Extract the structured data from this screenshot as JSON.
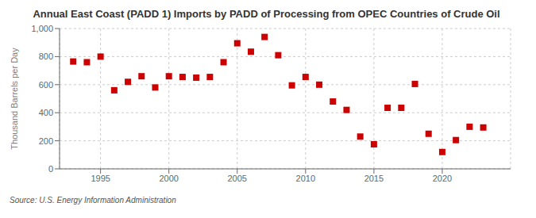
{
  "chart_data": {
    "type": "scatter",
    "title": "Annual East Coast (PADD 1) Imports by PADD of Processing from OPEC Countries of Crude Oil",
    "ylabel": "Thousand Barrels per Day",
    "annotations": [
      "Source: U.S. Energy Information Administration"
    ],
    "x": [
      1993,
      1994,
      1995,
      1996,
      1997,
      1998,
      1999,
      2000,
      2001,
      2002,
      2003,
      2004,
      2005,
      2006,
      2007,
      2008,
      2009,
      2010,
      2011,
      2012,
      2013,
      2014,
      2015,
      2016,
      2017,
      2018,
      2019,
      2020,
      2021,
      2022,
      2023
    ],
    "values": [
      765,
      760,
      800,
      560,
      620,
      660,
      580,
      660,
      655,
      650,
      655,
      760,
      895,
      835,
      940,
      810,
      595,
      655,
      600,
      480,
      420,
      230,
      175,
      435,
      435,
      605,
      250,
      120,
      205,
      300,
      295
    ],
    "color": "#cc0000",
    "marker": "square",
    "xlim": [
      1992,
      2025
    ],
    "xticks": [
      1995,
      2000,
      2005,
      2010,
      2015,
      2020
    ],
    "ylim": [
      0,
      1000
    ],
    "yticks": [
      0,
      200,
      400,
      600,
      800,
      {
        "value": 1000,
        "label": "1,000"
      }
    ],
    "grid": true
  }
}
